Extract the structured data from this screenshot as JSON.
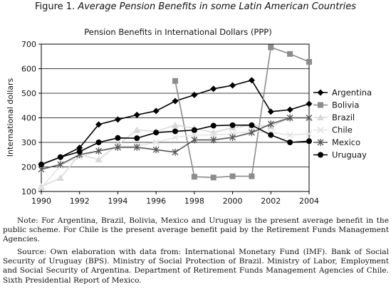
{
  "figure": {
    "label": "Figure 1.",
    "title": "Average Pension Benefits in some Latin American Countries"
  },
  "chart_data": {
    "type": "line",
    "title": "Pension Benefits in International Dollars (PPP)",
    "xlabel": "",
    "ylabel": "International dollars",
    "x": [
      1990,
      1991,
      1992,
      1993,
      1994,
      1995,
      1996,
      1997,
      1998,
      1999,
      2000,
      2001,
      2002,
      2003,
      2004
    ],
    "xticks": [
      "1990",
      "1992",
      "1994",
      "1996",
      "1998",
      "2000",
      "2002",
      "2004"
    ],
    "xlim": [
      1990,
      2004
    ],
    "ylim": [
      100,
      700
    ],
    "yticks": [
      "100",
      "200",
      "300",
      "400",
      "500",
      "600",
      "700"
    ],
    "grid": "horizontal",
    "legend_position": "right",
    "series": [
      {
        "name": "Argentina",
        "color": "#000000",
        "marker": "diamond",
        "values": [
          210,
          240,
          278,
          373,
          393,
          412,
          428,
          468,
          493,
          518,
          532,
          553,
          425,
          433,
          457
        ]
      },
      {
        "name": "Bolivia",
        "color": "#8c8c8c",
        "marker": "square",
        "values": [
          null,
          null,
          null,
          null,
          null,
          null,
          null,
          550,
          160,
          157,
          162,
          162,
          687,
          660,
          628
        ]
      },
      {
        "name": "Brazil",
        "color": "#d9d9d9",
        "marker": "triangle",
        "values": [
          120,
          155,
          250,
          230,
          290,
          350,
          345,
          370,
          358,
          340,
          360,
          370,
          365,
          400,
          400
        ]
      },
      {
        "name": "Chile",
        "color": "#e4e4e4",
        "marker": "x",
        "values": [
          115,
          205,
          240,
          265,
          285,
          285,
          300,
          320,
          330,
          330,
          335,
          345,
          340,
          330,
          335
        ]
      },
      {
        "name": "Mexico",
        "color": "#555555",
        "marker": "star",
        "values": [
          190,
          210,
          250,
          265,
          280,
          280,
          270,
          260,
          310,
          310,
          320,
          340,
          375,
          400,
          400
        ]
      },
      {
        "name": "Uruguay",
        "color": "#000000",
        "marker": "circle",
        "values": [
          210,
          240,
          262,
          300,
          318,
          317,
          340,
          345,
          350,
          368,
          370,
          370,
          330,
          300,
          305
        ]
      }
    ]
  },
  "notes": {
    "note": "Note: For Argentina, Brazil, Bolivia, Mexico and Uruguay is the present average benefit in the public scheme. For Chile is the present average benefit paid by the Retirement Funds Management Agencies.",
    "source": "Source: Own elaboration with data from: International Monetary Fund (IMF). Bank of Social Security of Uruguay (BPS). Ministry of Social Protection of Brazil. Ministry of Labor, Employment and Social Security of Argentina. Department of Retirement Funds Management Agencies of Chile. Sixth Presidential Report of Mexico."
  }
}
